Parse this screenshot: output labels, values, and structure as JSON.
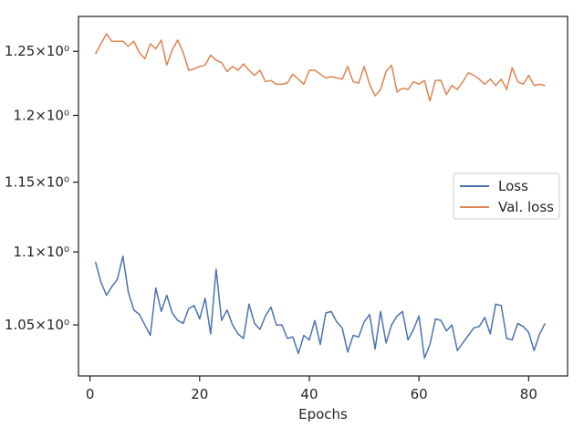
{
  "chart_data": {
    "type": "line",
    "title": "",
    "xlabel": "Epochs",
    "ylabel": "",
    "yscale": "log",
    "xlim": [
      -2.1,
      87.1
    ],
    "ylim": [
      1.0164,
      1.2781
    ],
    "grid": false,
    "legend_position": "center-right",
    "x_ticks": [
      0,
      20,
      40,
      60,
      80
    ],
    "x_tick_labels": [
      "0",
      "20",
      "40",
      "60",
      "80"
    ],
    "y_ticks": [
      1.05,
      1.1,
      1.15,
      1.2,
      1.25
    ],
    "y_tick_labels": [
      "1.05×10⁰",
      "1.1×10⁰",
      "1.15×10⁰",
      "1.2×10⁰",
      "1.25×10⁰"
    ],
    "series": [
      {
        "name": "Loss",
        "color": "#4c72b0",
        "x": [
          1,
          2,
          3,
          4,
          5,
          6,
          7,
          8,
          9,
          10,
          11,
          12,
          13,
          14,
          15,
          16,
          17,
          18,
          19,
          20,
          21,
          22,
          23,
          24,
          25,
          26,
          27,
          28,
          29,
          30,
          31,
          32,
          33,
          34,
          35,
          36,
          37,
          38,
          39,
          40,
          41,
          42,
          43,
          44,
          45,
          46,
          47,
          48,
          49,
          50,
          51,
          52,
          53,
          54,
          55,
          56,
          57,
          58,
          59,
          60,
          61,
          62,
          63,
          64,
          65,
          66,
          67,
          68,
          69,
          70,
          71,
          72,
          73,
          74,
          75,
          76,
          77,
          78,
          79,
          80,
          81,
          82,
          83
        ],
        "values": [
          1.093,
          1.079,
          1.07,
          1.076,
          1.081,
          1.097,
          1.072,
          1.06,
          1.057,
          1.05,
          1.043,
          1.075,
          1.059,
          1.07,
          1.058,
          1.053,
          1.051,
          1.061,
          1.063,
          1.054,
          1.068,
          1.044,
          1.088,
          1.053,
          1.06,
          1.05,
          1.044,
          1.041,
          1.064,
          1.051,
          1.047,
          1.056,
          1.062,
          1.05,
          1.05,
          1.041,
          1.042,
          1.031,
          1.043,
          1.04,
          1.053,
          1.037,
          1.058,
          1.059,
          1.052,
          1.048,
          1.032,
          1.043,
          1.042,
          1.052,
          1.057,
          1.034,
          1.059,
          1.038,
          1.05,
          1.056,
          1.059,
          1.04,
          1.047,
          1.056,
          1.028,
          1.037,
          1.054,
          1.053,
          1.046,
          1.05,
          1.033,
          1.038,
          1.043,
          1.048,
          1.049,
          1.055,
          1.044,
          1.064,
          1.063,
          1.041,
          1.04,
          1.051,
          1.049,
          1.045,
          1.033,
          1.044,
          1.051
        ]
      },
      {
        "name": "Val. loss",
        "color": "#dd8452",
        "x": [
          1,
          2,
          3,
          4,
          5,
          6,
          7,
          8,
          9,
          10,
          11,
          12,
          13,
          14,
          15,
          16,
          17,
          18,
          19,
          20,
          21,
          22,
          23,
          24,
          25,
          26,
          27,
          28,
          29,
          30,
          31,
          32,
          33,
          34,
          35,
          36,
          37,
          38,
          39,
          40,
          41,
          42,
          43,
          44,
          45,
          46,
          47,
          48,
          49,
          50,
          51,
          52,
          53,
          54,
          55,
          56,
          57,
          58,
          59,
          60,
          61,
          62,
          63,
          64,
          65,
          66,
          67,
          68,
          69,
          70,
          71,
          72,
          73,
          74,
          75,
          76,
          77,
          78,
          79,
          80,
          81,
          82,
          83
        ],
        "values": [
          1.248,
          1.256,
          1.264,
          1.258,
          1.258,
          1.258,
          1.254,
          1.258,
          1.249,
          1.244,
          1.256,
          1.252,
          1.259,
          1.239,
          1.251,
          1.259,
          1.249,
          1.235,
          1.236,
          1.238,
          1.239,
          1.247,
          1.243,
          1.241,
          1.234,
          1.238,
          1.235,
          1.24,
          1.235,
          1.231,
          1.235,
          1.226,
          1.227,
          1.224,
          1.224,
          1.225,
          1.232,
          1.228,
          1.224,
          1.235,
          1.235,
          1.232,
          1.229,
          1.23,
          1.229,
          1.228,
          1.238,
          1.226,
          1.225,
          1.238,
          1.224,
          1.215,
          1.22,
          1.234,
          1.239,
          1.218,
          1.221,
          1.22,
          1.226,
          1.224,
          1.227,
          1.211,
          1.227,
          1.227,
          1.216,
          1.223,
          1.22,
          1.226,
          1.233,
          1.231,
          1.228,
          1.224,
          1.228,
          1.223,
          1.228,
          1.22,
          1.237,
          1.226,
          1.224,
          1.231,
          1.223,
          1.224,
          1.223
        ]
      }
    ]
  }
}
